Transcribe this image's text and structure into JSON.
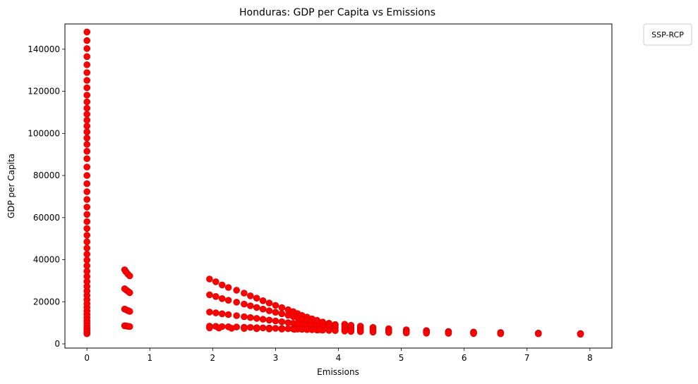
{
  "chart_data": {
    "type": "scatter",
    "title": "Honduras: GDP per Capita vs Emissions",
    "xlabel": "Emissions",
    "ylabel": "GDP per Capita",
    "xlim": [
      -0.35,
      8.35
    ],
    "ylim": [
      -2000,
      152000
    ],
    "xticks": [
      0,
      1,
      2,
      3,
      4,
      5,
      6,
      7,
      8
    ],
    "yticks": [
      0,
      20000,
      40000,
      60000,
      80000,
      100000,
      120000,
      140000
    ],
    "grid": false,
    "legend": {
      "title": "SSP-RCP",
      "placement": "outside top-right"
    },
    "marker_color": "#ff0000",
    "marker_edge_color": "#cc0000",
    "series": [
      {
        "points": [
          [
            0,
            4800
          ],
          [
            0,
            5600
          ],
          [
            0,
            6500
          ],
          [
            0,
            7500
          ],
          [
            0,
            8600
          ],
          [
            0,
            9800
          ],
          [
            0,
            11000
          ],
          [
            0,
            12500
          ],
          [
            0,
            14000
          ],
          [
            0,
            15600
          ],
          [
            0,
            17300
          ],
          [
            0,
            19100
          ],
          [
            0,
            21000
          ],
          [
            0,
            23000
          ],
          [
            0,
            25100
          ],
          [
            0,
            27300
          ],
          [
            0,
            29600
          ],
          [
            0,
            32000
          ],
          [
            0,
            34500
          ],
          [
            0,
            37100
          ],
          [
            0,
            39800
          ],
          [
            0,
            42600
          ],
          [
            0,
            45500
          ],
          [
            0,
            48500
          ],
          [
            0,
            51600
          ],
          [
            0,
            54800
          ],
          [
            0,
            58100
          ],
          [
            0,
            61500
          ],
          [
            0,
            65000
          ],
          [
            0,
            68600
          ],
          [
            0,
            72300
          ],
          [
            0,
            76100
          ],
          [
            0,
            80000
          ],
          [
            0,
            84000
          ],
          [
            0,
            88000
          ],
          [
            0,
            91500
          ],
          [
            0,
            94800
          ],
          [
            0,
            97800
          ],
          [
            0,
            100700
          ],
          [
            0,
            103500
          ],
          [
            0,
            106300
          ],
          [
            0,
            109100
          ],
          [
            0,
            112000
          ],
          [
            0,
            115000
          ],
          [
            0,
            118200
          ],
          [
            0,
            121700
          ],
          [
            0,
            125200
          ],
          [
            0,
            128900
          ],
          [
            0,
            132600
          ],
          [
            0,
            136500
          ],
          [
            0,
            140300
          ],
          [
            0,
            144100
          ],
          [
            0,
            148200
          ],
          [
            0.6,
            35200
          ],
          [
            0.62,
            34300
          ],
          [
            0.65,
            33200
          ],
          [
            0.68,
            32300
          ],
          [
            0.6,
            26200
          ],
          [
            0.63,
            25500
          ],
          [
            0.66,
            24800
          ],
          [
            0.68,
            24300
          ],
          [
            0.6,
            16500
          ],
          [
            0.63,
            16100
          ],
          [
            0.66,
            15700
          ],
          [
            0.68,
            15400
          ],
          [
            0.6,
            8600
          ],
          [
            0.62,
            8500
          ],
          [
            0.64,
            8400
          ],
          [
            0.66,
            8300
          ],
          [
            0.68,
            8200
          ],
          [
            1.95,
            30800
          ],
          [
            2.05,
            29500
          ],
          [
            2.15,
            28000
          ],
          [
            2.25,
            26800
          ],
          [
            2.38,
            25500
          ],
          [
            2.5,
            24100
          ],
          [
            2.6,
            22800
          ],
          [
            2.7,
            21700
          ],
          [
            2.8,
            20500
          ],
          [
            2.9,
            19400
          ],
          [
            3.0,
            18300
          ],
          [
            3.1,
            17200
          ],
          [
            3.2,
            16200
          ],
          [
            3.28,
            15300
          ],
          [
            3.35,
            14400
          ],
          [
            3.42,
            13500
          ],
          [
            3.5,
            12700
          ],
          [
            3.58,
            11900
          ],
          [
            3.66,
            11200
          ],
          [
            3.75,
            10400
          ],
          [
            3.85,
            9800
          ],
          [
            3.95,
            9200
          ],
          [
            1.95,
            23300
          ],
          [
            2.05,
            22500
          ],
          [
            2.15,
            21500
          ],
          [
            2.25,
            20700
          ],
          [
            2.38,
            19800
          ],
          [
            2.5,
            18900
          ],
          [
            2.6,
            18100
          ],
          [
            2.7,
            17300
          ],
          [
            2.8,
            16500
          ],
          [
            2.9,
            15700
          ],
          [
            3.0,
            15000
          ],
          [
            3.1,
            14300
          ],
          [
            3.2,
            13600
          ],
          [
            3.28,
            13000
          ],
          [
            3.35,
            12400
          ],
          [
            3.42,
            11800
          ],
          [
            3.5,
            11200
          ],
          [
            3.58,
            10600
          ],
          [
            3.66,
            10100
          ],
          [
            3.75,
            9600
          ],
          [
            3.85,
            9100
          ],
          [
            3.95,
            8700
          ],
          [
            1.95,
            15100
          ],
          [
            2.05,
            14700
          ],
          [
            2.15,
            14300
          ],
          [
            2.25,
            13900
          ],
          [
            2.38,
            13400
          ],
          [
            2.5,
            12900
          ],
          [
            2.6,
            12500
          ],
          [
            2.7,
            12100
          ],
          [
            2.8,
            11700
          ],
          [
            2.9,
            11300
          ],
          [
            3.0,
            10900
          ],
          [
            3.1,
            10500
          ],
          [
            3.2,
            10100
          ],
          [
            3.28,
            9800
          ],
          [
            3.35,
            9500
          ],
          [
            3.42,
            9200
          ],
          [
            3.5,
            8900
          ],
          [
            3.58,
            8600
          ],
          [
            3.66,
            8300
          ],
          [
            3.75,
            8100
          ],
          [
            3.85,
            7900
          ],
          [
            3.95,
            7700
          ],
          [
            1.95,
            8400
          ],
          [
            2.05,
            8300
          ],
          [
            2.15,
            8200
          ],
          [
            2.25,
            8100
          ],
          [
            2.38,
            8000
          ],
          [
            2.5,
            7900
          ],
          [
            2.6,
            7800
          ],
          [
            2.7,
            7700
          ],
          [
            2.8,
            7600
          ],
          [
            2.9,
            7500
          ],
          [
            3.0,
            7400
          ],
          [
            3.1,
            7300
          ],
          [
            3.2,
            7200
          ],
          [
            3.28,
            7100
          ],
          [
            3.35,
            7000
          ],
          [
            3.42,
            6900
          ],
          [
            3.5,
            6800
          ],
          [
            3.58,
            6700
          ],
          [
            3.66,
            6600
          ],
          [
            3.75,
            6500
          ],
          [
            3.85,
            6400
          ],
          [
            3.95,
            6300
          ],
          [
            1.95,
            7600
          ],
          [
            2.1,
            7500
          ],
          [
            2.3,
            7400
          ],
          [
            2.5,
            7300
          ],
          [
            2.7,
            7200
          ],
          [
            2.9,
            7100
          ],
          [
            3.1,
            7000
          ],
          [
            3.3,
            6900
          ],
          [
            3.5,
            6800
          ],
          [
            3.7,
            6700
          ],
          [
            4.1,
            9300
          ],
          [
            4.1,
            8100
          ],
          [
            4.1,
            7000
          ],
          [
            4.1,
            6100
          ],
          [
            4.2,
            8800
          ],
          [
            4.2,
            7700
          ],
          [
            4.2,
            6800
          ],
          [
            4.2,
            5900
          ],
          [
            4.35,
            8400
          ],
          [
            4.35,
            7400
          ],
          [
            4.35,
            6600
          ],
          [
            4.35,
            5800
          ],
          [
            4.55,
            7800
          ],
          [
            4.55,
            7000
          ],
          [
            4.55,
            6300
          ],
          [
            4.55,
            5600
          ],
          [
            4.8,
            7200
          ],
          [
            4.8,
            6600
          ],
          [
            4.8,
            6000
          ],
          [
            4.8,
            5400
          ],
          [
            5.08,
            6700
          ],
          [
            5.08,
            6200
          ],
          [
            5.08,
            5700
          ],
          [
            5.08,
            5200
          ],
          [
            5.4,
            6300
          ],
          [
            5.4,
            5900
          ],
          [
            5.4,
            5500
          ],
          [
            5.4,
            5100
          ],
          [
            5.75,
            5900
          ],
          [
            5.75,
            5600
          ],
          [
            5.75,
            5300
          ],
          [
            5.75,
            5000
          ],
          [
            6.15,
            5600
          ],
          [
            6.15,
            5300
          ],
          [
            6.15,
            5100
          ],
          [
            6.15,
            4900
          ],
          [
            6.58,
            5400
          ],
          [
            6.58,
            5200
          ],
          [
            6.58,
            5000
          ],
          [
            6.58,
            4800
          ],
          [
            7.18,
            5100
          ],
          [
            7.18,
            5000
          ],
          [
            7.18,
            4900
          ],
          [
            7.18,
            4800
          ],
          [
            7.85,
            4900
          ],
          [
            7.85,
            4800
          ],
          [
            7.85,
            4700
          ],
          [
            7.85,
            4600
          ]
        ]
      }
    ]
  }
}
